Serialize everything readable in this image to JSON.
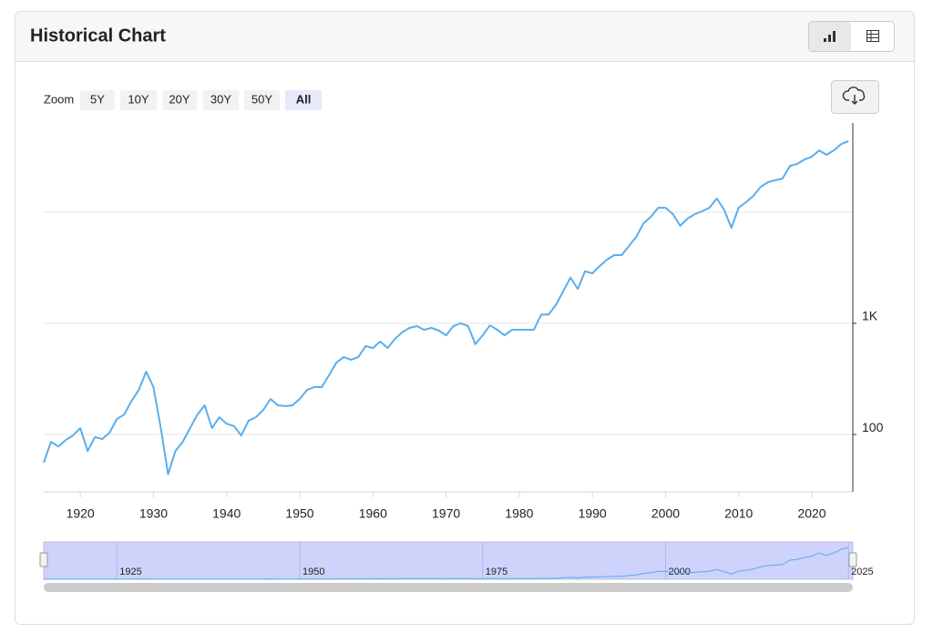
{
  "header": {
    "title": "Historical Chart"
  },
  "zoom": {
    "label": "Zoom",
    "options": [
      "5Y",
      "10Y",
      "20Y",
      "30Y",
      "50Y",
      "All"
    ],
    "active_index": 5
  },
  "chart_data": {
    "type": "line",
    "color": "#5aaeed",
    "log_y": true,
    "x": [
      1915,
      1916,
      1917,
      1918,
      1919,
      1920,
      1921,
      1922,
      1923,
      1924,
      1925,
      1926,
      1927,
      1928,
      1929,
      1930,
      1931,
      1932,
      1933,
      1934,
      1935,
      1936,
      1937,
      1938,
      1939,
      1940,
      1941,
      1942,
      1943,
      1944,
      1945,
      1946,
      1947,
      1948,
      1949,
      1950,
      1951,
      1952,
      1953,
      1954,
      1955,
      1956,
      1957,
      1958,
      1959,
      1960,
      1961,
      1962,
      1963,
      1964,
      1965,
      1966,
      1967,
      1968,
      1969,
      1970,
      1971,
      1972,
      1973,
      1974,
      1975,
      1976,
      1977,
      1978,
      1979,
      1980,
      1981,
      1982,
      1983,
      1984,
      1985,
      1986,
      1987,
      1988,
      1989,
      1990,
      1991,
      1992,
      1993,
      1994,
      1995,
      1996,
      1997,
      1998,
      1999,
      2000,
      2001,
      2002,
      2003,
      2004,
      2005,
      2006,
      2007,
      2008,
      2009,
      2010,
      2011,
      2012,
      2013,
      2014,
      2015,
      2016,
      2017,
      2018,
      2019,
      2020,
      2021,
      2022,
      2023,
      2024,
      2025
    ],
    "values": [
      56,
      86,
      78,
      89,
      98,
      114,
      71,
      95,
      91,
      104,
      138,
      151,
      200,
      252,
      368,
      267,
      114,
      44,
      71,
      86,
      114,
      151,
      183,
      114,
      143,
      125,
      119,
      98,
      133,
      143,
      166,
      209,
      183,
      180,
      183,
      209,
      252,
      267,
      267,
      341,
      443,
      497,
      470,
      497,
      624,
      600,
      686,
      600,
      725,
      830,
      910,
      945,
      875,
      910,
      860,
      780,
      945,
      1000,
      945,
      650,
      780,
      960,
      875,
      780,
      875,
      875,
      875,
      875,
      1200,
      1200,
      1460,
      1940,
      2580,
      2040,
      2940,
      2820,
      3280,
      3740,
      4120,
      4120,
      4960,
      6000,
      7960,
      9100,
      10960,
      10960,
      9600,
      7540,
      8750,
      9600,
      10190,
      10960,
      13260,
      10560,
      7240,
      10960,
      12300,
      14000,
      16900,
      18640,
      19380,
      20100,
      26100,
      27200,
      29800,
      31600,
      36000,
      32800,
      36000,
      41000,
      43600
    ],
    "xlim": [
      1915,
      2025.6
    ],
    "ylim": [
      30.5,
      63500
    ],
    "xticks": [
      1920,
      1930,
      1940,
      1950,
      1960,
      1970,
      1980,
      1990,
      2000,
      2010,
      2020
    ],
    "yticks": [
      {
        "value": 100,
        "label": "100"
      },
      {
        "value": 1000,
        "label": "1K"
      }
    ],
    "ygrid": [
      100,
      1000,
      10000
    ],
    "navigator": {
      "ticks": [
        1925,
        1950,
        1975,
        2000,
        2025
      ]
    }
  }
}
